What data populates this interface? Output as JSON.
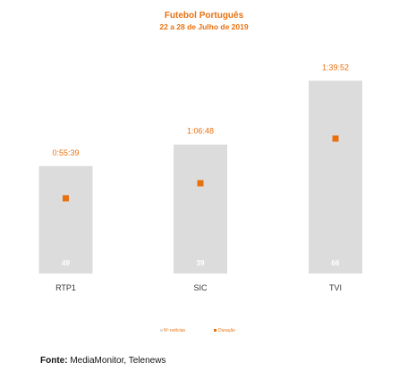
{
  "colors": {
    "bar": "#dcdcdc",
    "accent": "#e8710f",
    "count_text": "#ffffff"
  },
  "chart_data": {
    "type": "bar",
    "title": "Futebol Português",
    "subtitle": "22 a 28 de Julho de 2019",
    "categories": [
      "RTP1",
      "SIC",
      "TVI"
    ],
    "series": [
      {
        "name": "Nº notícias",
        "values": [
          49,
          39,
          66
        ],
        "color": "#dcdcdc"
      },
      {
        "name": "Duração",
        "values": [
          "0:55:39",
          "1:06:48",
          "1:39:52"
        ],
        "values_seconds": [
          3339,
          4008,
          5992
        ],
        "color": "#e8710f"
      }
    ],
    "legend_position": "bottom",
    "grid": false
  },
  "source": {
    "label": "Fonte:",
    "text": " MediaMonitor, Telenews"
  }
}
